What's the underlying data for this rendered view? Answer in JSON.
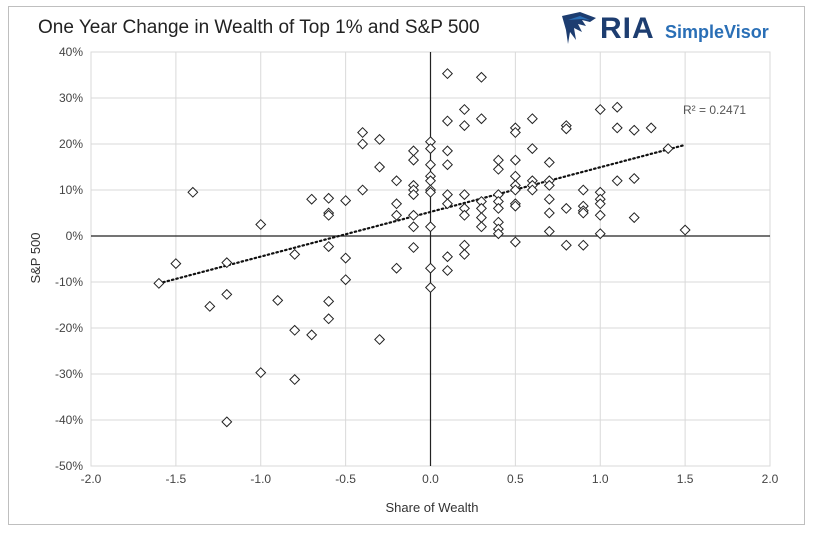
{
  "title": "One Year Change in Wealth of Top 1% and S&P 500",
  "brand": {
    "logo_text": "RIA",
    "product_name": "SimpleVisor",
    "logo_icon": "eagle-icon",
    "color_primary": "#1d3d70",
    "color_secondary": "#2a6fb6"
  },
  "chart_data": {
    "type": "scatter",
    "xlabel": "Share of Wealth",
    "ylabel": "S&P 500",
    "xlim": [
      -2.0,
      2.0
    ],
    "ylim": [
      -50,
      40
    ],
    "x_ticks": [
      "-2.0",
      "-1.5",
      "-1.0",
      "-0.5",
      "0.0",
      "0.5",
      "1.0",
      "1.5",
      "2.0"
    ],
    "y_ticks": [
      "-50%",
      "-40%",
      "-30%",
      "-20%",
      "-10%",
      "0%",
      "10%",
      "20%",
      "30%",
      "40%"
    ],
    "grid": true,
    "marker": "diamond",
    "trendline": {
      "type": "linear",
      "x": [
        -1.6,
        1.5
      ],
      "y": [
        -10.3,
        19.8
      ],
      "label": "R² = 0.2471"
    },
    "points": [
      [
        -1.6,
        -10.3
      ],
      [
        -1.5,
        -6
      ],
      [
        -1.4,
        9.5
      ],
      [
        -1.3,
        -15.3
      ],
      [
        -1.2,
        -5.8
      ],
      [
        -1.2,
        -12.7
      ],
      [
        -1.2,
        -40.4
      ],
      [
        -1.0,
        2.5
      ],
      [
        -1.0,
        -29.7
      ],
      [
        -0.9,
        -14
      ],
      [
        -0.8,
        -4
      ],
      [
        -0.8,
        -20.5
      ],
      [
        -0.8,
        -31.2
      ],
      [
        -0.7,
        8
      ],
      [
        -0.7,
        -21.5
      ],
      [
        -0.6,
        8.2
      ],
      [
        -0.6,
        5
      ],
      [
        -0.6,
        4.5
      ],
      [
        -0.6,
        -2.3
      ],
      [
        -0.6,
        -14.2
      ],
      [
        -0.6,
        -18
      ],
      [
        -0.5,
        7.7
      ],
      [
        -0.5,
        -4.8
      ],
      [
        -0.5,
        -9.5
      ],
      [
        -0.4,
        22.5
      ],
      [
        -0.4,
        20
      ],
      [
        -0.4,
        10
      ],
      [
        -0.3,
        21
      ],
      [
        -0.3,
        15
      ],
      [
        -0.3,
        -22.5
      ],
      [
        -0.2,
        12
      ],
      [
        -0.2,
        7
      ],
      [
        -0.2,
        4.5
      ],
      [
        -0.2,
        -7
      ],
      [
        -0.1,
        18.5
      ],
      [
        -0.1,
        16.5
      ],
      [
        -0.1,
        11
      ],
      [
        -0.1,
        10
      ],
      [
        -0.1,
        9
      ],
      [
        -0.1,
        4.5
      ],
      [
        -0.1,
        2
      ],
      [
        -0.1,
        -2.5
      ],
      [
        0.0,
        20.5
      ],
      [
        0.0,
        19
      ],
      [
        0.0,
        15.5
      ],
      [
        0.0,
        13
      ],
      [
        0.0,
        12
      ],
      [
        0.0,
        10
      ],
      [
        0.0,
        9.5
      ],
      [
        0.0,
        2
      ],
      [
        0.0,
        -7
      ],
      [
        0.0,
        -11.2
      ],
      [
        0.1,
        35.3
      ],
      [
        0.1,
        25
      ],
      [
        0.1,
        18.5
      ],
      [
        0.1,
        15.5
      ],
      [
        0.1,
        9
      ],
      [
        0.1,
        7
      ],
      [
        0.1,
        -4.5
      ],
      [
        0.1,
        -7.5
      ],
      [
        0.2,
        27.5
      ],
      [
        0.2,
        24
      ],
      [
        0.2,
        9
      ],
      [
        0.2,
        6
      ],
      [
        0.2,
        4.5
      ],
      [
        0.2,
        -2
      ],
      [
        0.2,
        -4
      ],
      [
        0.3,
        34.5
      ],
      [
        0.3,
        25.5
      ],
      [
        0.3,
        7.5
      ],
      [
        0.3,
        6
      ],
      [
        0.3,
        4
      ],
      [
        0.3,
        2
      ],
      [
        0.4,
        16.5
      ],
      [
        0.4,
        14.5
      ],
      [
        0.4,
        9
      ],
      [
        0.4,
        7.5
      ],
      [
        0.4,
        6
      ],
      [
        0.4,
        3
      ],
      [
        0.4,
        1.5
      ],
      [
        0.4,
        0.5
      ],
      [
        0.5,
        23.5
      ],
      [
        0.5,
        22.5
      ],
      [
        0.5,
        16.5
      ],
      [
        0.5,
        13
      ],
      [
        0.5,
        11
      ],
      [
        0.5,
        10
      ],
      [
        0.5,
        7
      ],
      [
        0.5,
        6.5
      ],
      [
        0.5,
        -1.3
      ],
      [
        0.6,
        25.5
      ],
      [
        0.6,
        19
      ],
      [
        0.6,
        12
      ],
      [
        0.6,
        11
      ],
      [
        0.6,
        10
      ],
      [
        0.7,
        16
      ],
      [
        0.7,
        12
      ],
      [
        0.7,
        11
      ],
      [
        0.7,
        8
      ],
      [
        0.7,
        5
      ],
      [
        0.7,
        1
      ],
      [
        0.8,
        24
      ],
      [
        0.8,
        23.3
      ],
      [
        0.8,
        6
      ],
      [
        0.8,
        -2
      ],
      [
        0.9,
        10
      ],
      [
        0.9,
        6.5
      ],
      [
        0.9,
        5.5
      ],
      [
        0.9,
        5
      ],
      [
        0.9,
        -2
      ],
      [
        1.0,
        27.5
      ],
      [
        1.0,
        9.5
      ],
      [
        1.0,
        8
      ],
      [
        1.0,
        7
      ],
      [
        1.0,
        4.5
      ],
      [
        1.0,
        0.5
      ],
      [
        1.1,
        28
      ],
      [
        1.1,
        23.5
      ],
      [
        1.1,
        12
      ],
      [
        1.2,
        23
      ],
      [
        1.2,
        12.5
      ],
      [
        1.2,
        4
      ],
      [
        1.3,
        23.5
      ],
      [
        1.4,
        19
      ],
      [
        1.5,
        1.3
      ]
    ]
  }
}
